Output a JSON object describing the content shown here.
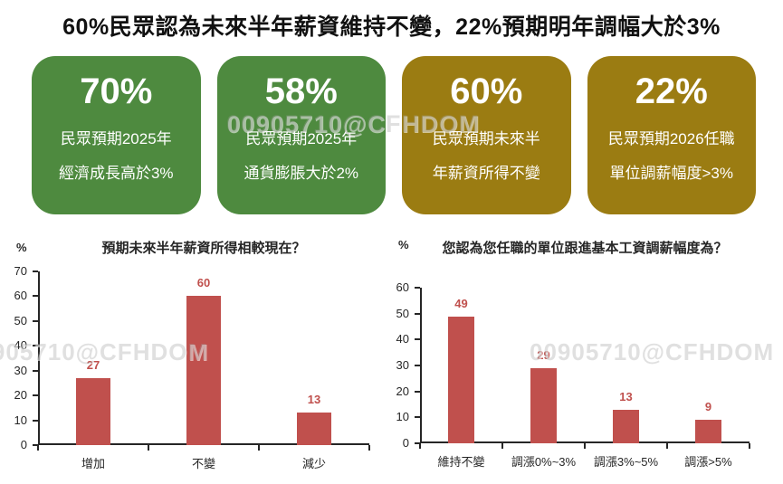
{
  "header": {
    "title": "60%民眾認為未來半年薪資維持不變，22%預期明年調幅大於3%"
  },
  "watermark": {
    "text": "00905710@CFHDOM"
  },
  "colors": {
    "card_green": "#4E8A3F",
    "card_olive": "#9B7C12",
    "bar_red": "#C0504D",
    "value_label_red": "#C0504D",
    "axis_black": "#262626"
  },
  "cards": [
    {
      "value": "70%",
      "line1": "民眾預期2025年",
      "line2": "經濟成長高於3%",
      "color": "#4E8A3F"
    },
    {
      "value": "58%",
      "line1": "民眾預期2025年",
      "line2": "通貨膨脹大於2%",
      "color": "#4E8A3F"
    },
    {
      "value": "60%",
      "line1": "民眾預期未來半",
      "line2": "年薪資所得不變",
      "color": "#9B7C12"
    },
    {
      "value": "22%",
      "line1": "民眾預期2026任職",
      "line2": "單位調薪幅度>3%",
      "color": "#9B7C12"
    }
  ],
  "chart_data": [
    {
      "type": "bar",
      "title": "預期未來半年薪資所得相較現在？",
      "xlabel": "",
      "ylabel": "%",
      "ylim": [
        0,
        70
      ],
      "ystep": 10,
      "grid": false,
      "legend": null,
      "categories": [
        "增加",
        "不變",
        "減少"
      ],
      "values": [
        27,
        60,
        13
      ],
      "bar_color": "#C0504D"
    },
    {
      "type": "bar",
      "title": "您認為您任職的單位跟進基本工資調薪幅度為？",
      "xlabel": "",
      "ylabel": "%",
      "ylim": [
        0,
        60
      ],
      "ystep": 10,
      "grid": false,
      "legend": null,
      "categories": [
        "維持不變",
        "調漲0%~3%",
        "調漲3%~5%",
        "調漲>5%"
      ],
      "values": [
        49,
        29,
        13,
        9
      ],
      "bar_color": "#C0504D"
    }
  ]
}
